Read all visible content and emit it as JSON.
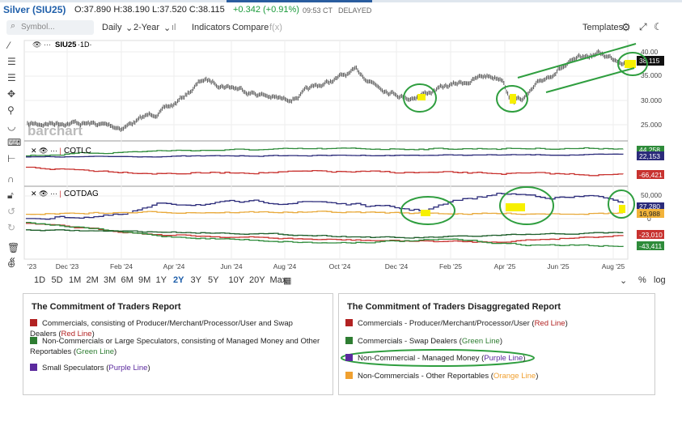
{
  "header": {
    "symbol": "Silver (SIU25)",
    "ohlc": "O:37.890 H:38.190 L:37.520 C:38.115",
    "change": "+0.342 (+0.91%)",
    "time": "09:53 CT",
    "status": "DELAYED"
  },
  "toolbar": {
    "search": "Symbol...",
    "interval": "Daily",
    "range": "2-Year",
    "indicators": "Indicators",
    "compare": "Compare",
    "fx": "f(x)",
    "templates": "Templates"
  },
  "panes": [
    {
      "label": "SIU25",
      "interval": "·1D·",
      "axis": [
        "40.00",
        "35.000",
        "30.000",
        "25.000"
      ],
      "last": "38.115"
    },
    {
      "label": "COTLC",
      "last": [
        "44,258",
        "22,153",
        "-66,421"
      ]
    },
    {
      "label": "COTDAG",
      "axis": [
        "50,000",
        "0"
      ],
      "last": [
        "27,280",
        "16,988",
        "-23,010",
        "-43,411"
      ]
    }
  ],
  "watermark": "barchart",
  "xaxis": [
    "'23",
    "Dec '23",
    "Feb '24",
    "Apr '24",
    "Jun '24",
    "Aug '24",
    "Oct '24",
    "Dec '24",
    "Feb '25",
    "Apr '25",
    "Jun '25",
    "Aug '25"
  ],
  "periods": [
    "1D",
    "5D",
    "1M",
    "2M",
    "3M",
    "6M",
    "9M",
    "1Y",
    "2Y",
    "3Y",
    "5Y",
    "10Y",
    "20Y",
    "Max"
  ],
  "options": [
    "%",
    "log"
  ],
  "legend_left": {
    "title": "The Commitment of Traders Report",
    "items": [
      {
        "text": "Commercials, consisting of Producer/Merchant/Processor/User and Swap Dealers (",
        "line": "Red Line",
        "end": ")"
      },
      {
        "text": "Non-Commercials or Large Speculators, consisting of Managed Money and Other Reportables (",
        "line": "Green Line",
        "end": ")"
      },
      {
        "text": "Small Speculators (",
        "line": "Purple Line",
        "end": ")"
      }
    ]
  },
  "legend_right": {
    "title": "The Commitment of Traders Disaggregated Report",
    "items": [
      {
        "text": "Commercials - Producer/Merchant/Processor/User (",
        "line": "Red Line",
        "end": ")"
      },
      {
        "text": "Commercials - Swap Dealers (",
        "line": "Green Line",
        "end": ")"
      },
      {
        "text": "Non-Commercial - Managed Money (",
        "line": "Purple Line",
        "end": ")"
      },
      {
        "text": "Non-Commercials - Other Reportables (",
        "line": "Orange Line",
        "end": ")"
      }
    ]
  }
}
